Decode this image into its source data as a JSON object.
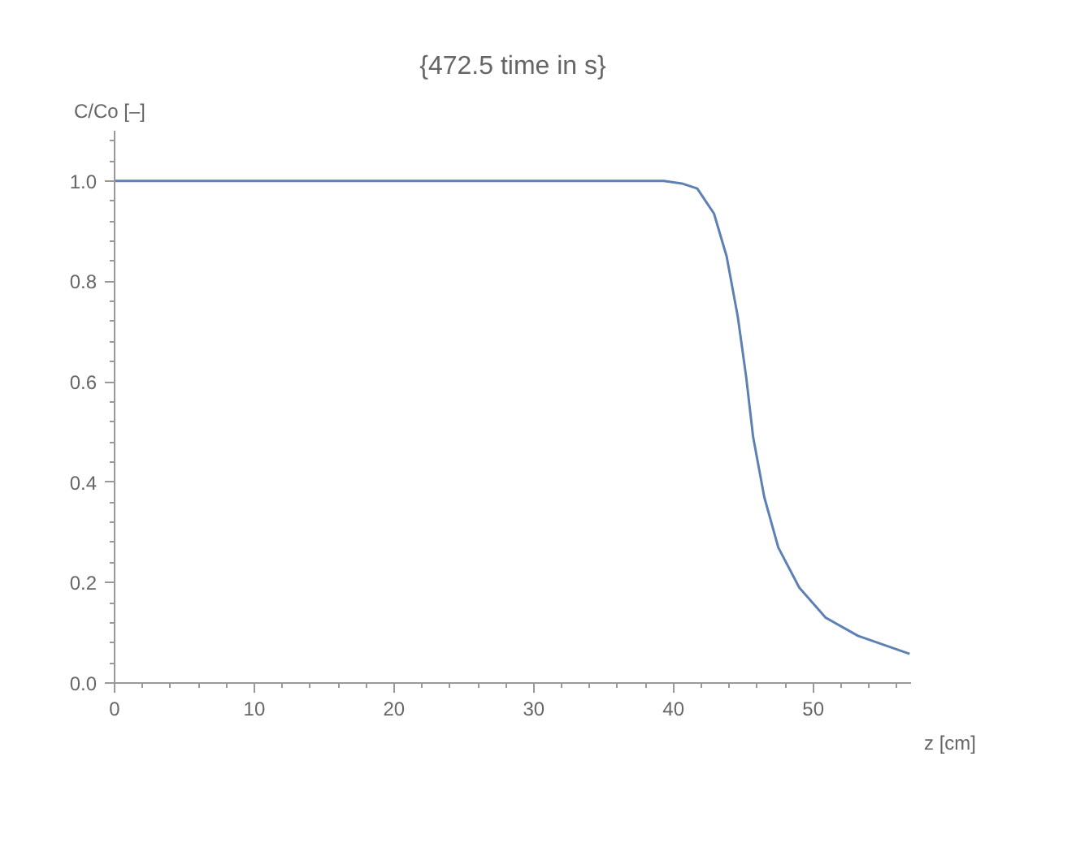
{
  "chart_data": {
    "type": "line",
    "title": "{472.5 time in s}",
    "xlabel": "z [cm]",
    "ylabel": "C/Co [–]",
    "x": [
      0,
      20,
      34.8,
      39.3,
      40.6,
      41.7,
      42.9,
      43.8,
      44.6,
      45.2,
      45.7,
      46.5,
      47.5,
      49.0,
      50.9,
      53.2,
      56.9
    ],
    "series": [
      {
        "color": "#5e81b5",
        "values": [
          1.0,
          1.0,
          1.0,
          1.0,
          0.995,
          0.985,
          0.935,
          0.85,
          0.73,
          0.61,
          0.49,
          0.37,
          0.27,
          0.19,
          0.13,
          0.094,
          0.058
        ]
      }
    ],
    "xlim": [
      0,
      57
    ],
    "ylim": [
      0,
      1.1
    ],
    "xticks": [
      0,
      10,
      20,
      30,
      40,
      50
    ],
    "yticks": [
      {
        "value": 0,
        "label": "0.0"
      },
      0.2,
      0.4,
      0.6,
      0.8,
      {
        "value": 1,
        "label": "1.0"
      }
    ],
    "grid": false,
    "marker": "none",
    "line_style": "solid"
  }
}
